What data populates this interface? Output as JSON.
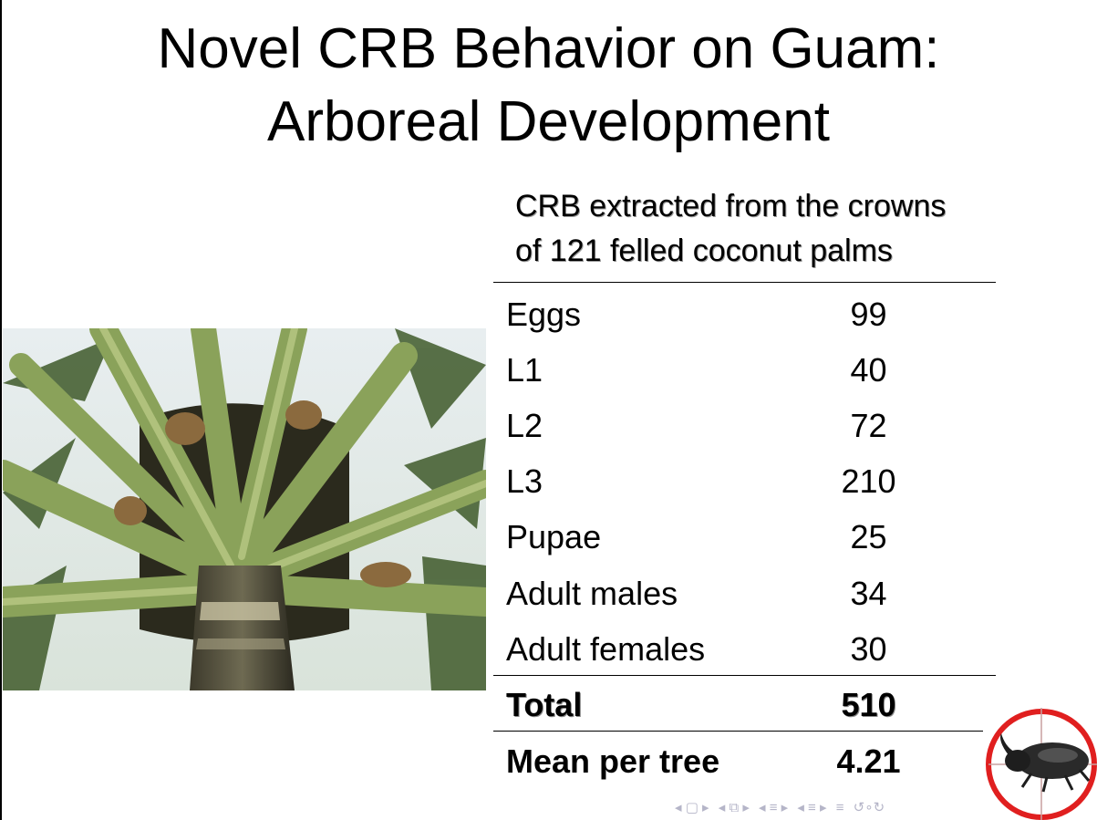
{
  "slide": {
    "title_line1": "Novel CRB Behavior on Guam:",
    "title_line2": "Arboreal Development"
  },
  "table": {
    "caption_line1": "CRB extracted from the crowns",
    "caption_line2": "of 121 felled coconut palms",
    "rows": [
      {
        "label": "Eggs",
        "value": "99"
      },
      {
        "label": "L1",
        "value": "40"
      },
      {
        "label": "L2",
        "value": "72"
      },
      {
        "label": "L3",
        "value": "210"
      },
      {
        "label": "Pupae",
        "value": "25"
      },
      {
        "label": "Adult males",
        "value": "34"
      },
      {
        "label": "Adult females",
        "value": "30"
      }
    ],
    "total": {
      "label": "Total",
      "value": "510"
    },
    "mean": {
      "label": "Mean per tree",
      "value": "4.21"
    }
  },
  "icons": {
    "photo": "coconut-palm-crown-photo",
    "logo": "rhinoceros-beetle-crosshair-logo"
  },
  "nav": {
    "first": "◂ ▢ ▸",
    "section": "◂ ⧉ ▸",
    "subsection": "◂ ≡ ▸",
    "frame": "◂ ≡ ▸",
    "align": "≡",
    "search": "↺∘↻"
  },
  "colors": {
    "nav": "#b5b5c8",
    "logo_ring": "#e01f1f"
  }
}
